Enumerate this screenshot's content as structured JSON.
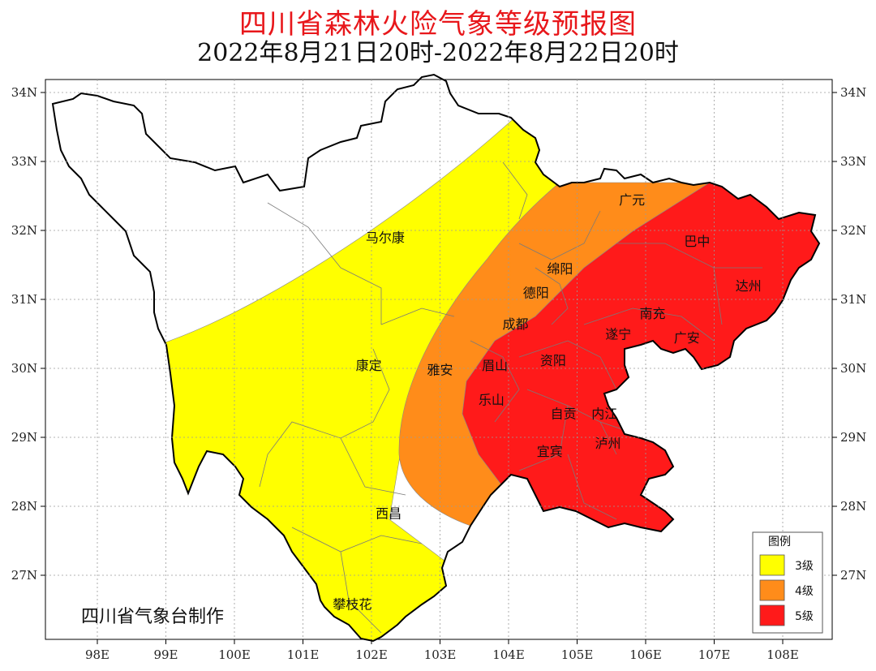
{
  "title": "四川省森林火险气象等级预报图",
  "subtitle": "2022年8月21日20时-2022年8月22日20时",
  "credit": "四川省气象台制作",
  "axes": {
    "longitude_ticks": [
      "98E",
      "99E",
      "100E",
      "101E",
      "102E",
      "103E",
      "104E",
      "105E",
      "106E",
      "107E",
      "108E"
    ],
    "latitude_ticks": [
      "34N",
      "33N",
      "32N",
      "31N",
      "30N",
      "29N",
      "28N",
      "27N"
    ]
  },
  "cities": [
    {
      "name": "马尔康",
      "lon": 102.2,
      "lat": 31.9
    },
    {
      "name": "广元",
      "lon": 105.8,
      "lat": 32.45
    },
    {
      "name": "巴中",
      "lon": 106.75,
      "lat": 31.85
    },
    {
      "name": "绵阳",
      "lon": 104.75,
      "lat": 31.45
    },
    {
      "name": "德阳",
      "lon": 104.4,
      "lat": 31.1
    },
    {
      "name": "达州",
      "lon": 107.5,
      "lat": 31.2
    },
    {
      "name": "成都",
      "lon": 104.1,
      "lat": 30.65
    },
    {
      "name": "南充",
      "lon": 106.1,
      "lat": 30.8
    },
    {
      "name": "遂宁",
      "lon": 105.6,
      "lat": 30.5
    },
    {
      "name": "广安",
      "lon": 106.6,
      "lat": 30.45
    },
    {
      "name": "康定",
      "lon": 101.96,
      "lat": 30.05
    },
    {
      "name": "雅安",
      "lon": 103.0,
      "lat": 29.98
    },
    {
      "name": "眉山",
      "lon": 103.8,
      "lat": 30.05
    },
    {
      "name": "资阳",
      "lon": 104.65,
      "lat": 30.12
    },
    {
      "name": "乐山",
      "lon": 103.75,
      "lat": 29.55
    },
    {
      "name": "自贡",
      "lon": 104.8,
      "lat": 29.35
    },
    {
      "name": "内江",
      "lon": 105.4,
      "lat": 29.35
    },
    {
      "name": "宜宾",
      "lon": 104.6,
      "lat": 28.8
    },
    {
      "name": "泸州",
      "lon": 105.45,
      "lat": 28.92
    },
    {
      "name": "西昌",
      "lon": 102.25,
      "lat": 27.9
    },
    {
      "name": "攀枝花",
      "lon": 101.72,
      "lat": 26.58
    }
  ],
  "legend": {
    "title": "图例",
    "items": [
      {
        "label": "3级",
        "color": "#ffff00"
      },
      {
        "label": "4级",
        "color": "#ff8c1a"
      },
      {
        "label": "5级",
        "color": "#ff1a1a"
      }
    ]
  },
  "colors": {
    "level3": "#ffff00",
    "level4": "#ff8c1a",
    "level5": "#ff1a1a",
    "title": "#e8171b"
  }
}
